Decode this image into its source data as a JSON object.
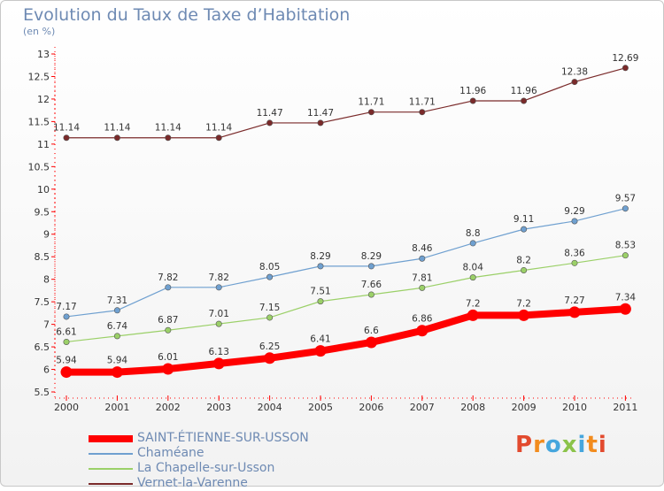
{
  "title": "Evolution du Taux de Taxe d’Habitation",
  "subtitle": "(en %)",
  "logo": {
    "text": "Proxiti",
    "colors": [
      "#e24a2e",
      "#f28c1e",
      "#46a6dd",
      "#8bc34a",
      "#46a6dd",
      "#f28c1e",
      "#e24a2e"
    ]
  },
  "chart_data": {
    "type": "line",
    "x": [
      "2000",
      "2001",
      "2002",
      "2003",
      "2004",
      "2005",
      "2006",
      "2007",
      "2008",
      "2009",
      "2010",
      "2011"
    ],
    "ylim": [
      5.5,
      13
    ],
    "yticks": [
      "5.5",
      "6",
      "6.5",
      "7",
      "7.5",
      "8",
      "8.5",
      "9",
      "9.5",
      "10",
      "10.5",
      "11",
      "11.5",
      "12",
      "12.5",
      "13"
    ],
    "grid": false,
    "legend_position": "bottom-left",
    "series": [
      {
        "name": "SAINT-ÉTIENNE-SUR-USSON",
        "color": "#ff0000",
        "values": [
          5.94,
          5.94,
          6.01,
          6.13,
          6.25,
          6.41,
          6.6,
          6.86,
          7.2,
          7.2,
          7.27,
          7.34
        ]
      },
      {
        "name": "Chaméane",
        "color": "#6fa0d0",
        "values": [
          7.17,
          7.31,
          7.82,
          7.82,
          8.05,
          8.29,
          8.29,
          8.46,
          8.8,
          9.11,
          9.29,
          9.57
        ]
      },
      {
        "name": "La Chapelle-sur-Usson",
        "color": "#9bd068",
        "values": [
          6.61,
          6.74,
          6.87,
          7.01,
          7.15,
          7.51,
          7.66,
          7.81,
          8.04,
          8.2,
          8.36,
          8.53
        ]
      },
      {
        "name": "Vernet-la-Varenne",
        "color": "#7a2a2a",
        "values": [
          11.14,
          11.14,
          11.14,
          11.14,
          11.47,
          11.47,
          11.71,
          11.71,
          11.96,
          11.96,
          12.38,
          12.69
        ]
      }
    ]
  }
}
